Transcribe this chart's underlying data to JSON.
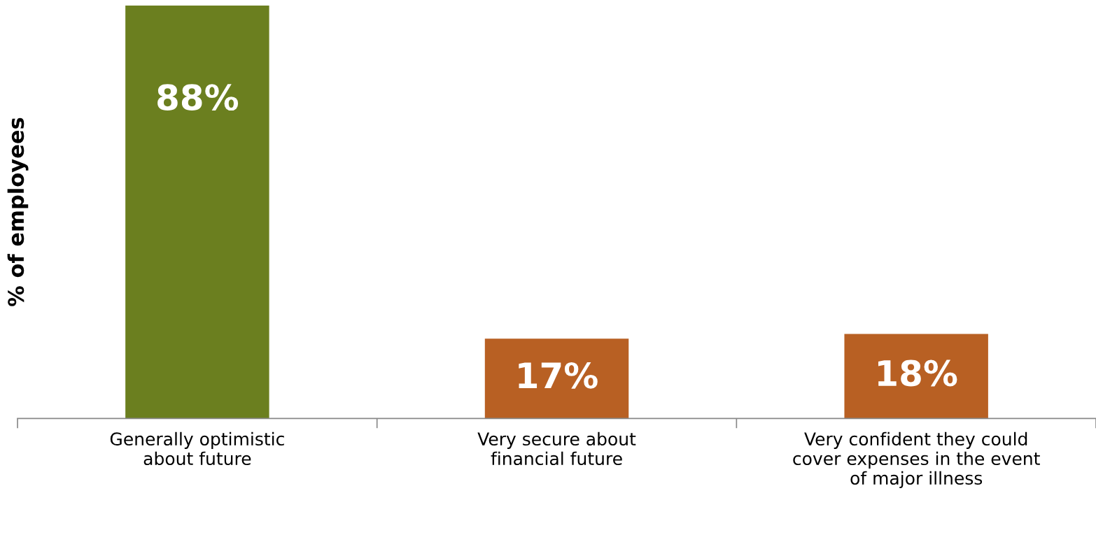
{
  "chart_data": {
    "type": "bar",
    "ylabel": "% of employees",
    "categories": [
      "Generally optimistic\nabout future",
      "Very secure about\nfinancial future",
      "Very confident they could\ncover expenses in the event\nof major illness"
    ],
    "values": [
      88,
      17,
      18
    ],
    "colors": [
      "#6b7f1f",
      "#b86023",
      "#b86023"
    ],
    "value_labels": [
      "88%",
      "17%",
      "18%"
    ],
    "grid": false,
    "legend": false
  }
}
